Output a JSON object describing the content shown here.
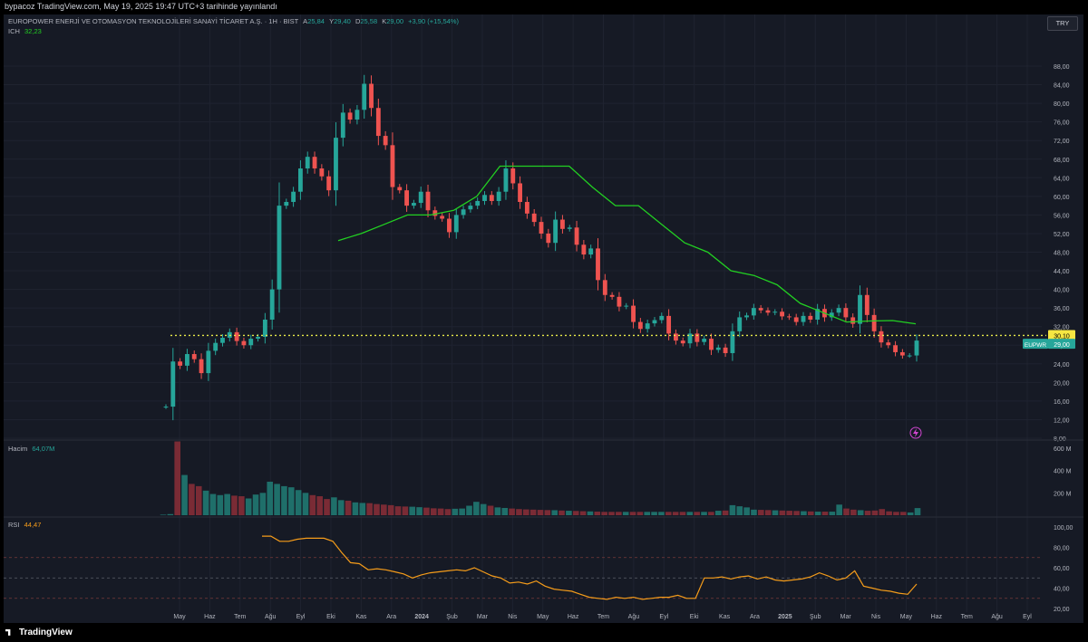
{
  "header": {
    "published_line": "bypacoz TradingView.com, May 19, 2025 19:47 UTC+3 tarihinde yayınlandı"
  },
  "legend": {
    "symbol_line": "EUROPOWER ENERJİ VE OTOMASYON TEKNOLOJİLERİ SANAYİ TİCARET A.Ş. · 1H · BIST",
    "open_label": "A",
    "open": "25,84",
    "high_label": "Y",
    "high": "29,40",
    "low_label": "D",
    "low": "25,58",
    "close_label": "K",
    "close": "29,00",
    "change": "+3,90 (+15,54%)",
    "ich_label": "ICH",
    "ich_value": "32,23",
    "volume_label": "Hacim",
    "volume_value": "64,07M",
    "rsi_label": "RSI",
    "rsi_value": "44,47"
  },
  "currency": "TRY",
  "brand": "TradingView",
  "colors": {
    "up": "#26a69a",
    "down": "#ef5350",
    "ich": "#22d022",
    "rsi": "#f59c1a",
    "ref_line": "#e8e84a",
    "background": "#161a25",
    "grid": "#1f2330"
  },
  "price_labels": {
    "ref_badge": "30,10",
    "symbol_badge": "EUPWR",
    "last_badge": "29,00"
  },
  "chart_data": [
    {
      "type": "candlestick",
      "title": "EUPWR",
      "ylim": [
        8,
        88
      ],
      "y_ticks": [
        "8,00",
        "12,00",
        "16,00",
        "20,00",
        "24,00",
        "28,00",
        "32,00",
        "36,00",
        "40,00",
        "44,00",
        "48,00",
        "52,00",
        "56,00",
        "60,00",
        "64,00",
        "68,00",
        "72,00",
        "76,00",
        "80,00",
        "84,00",
        "88,00"
      ],
      "x_ticks": [
        "May",
        "Haz",
        "Tem",
        "Ağu",
        "Eyl",
        "Eki",
        "Kas",
        "Ara",
        "2024",
        "Şub",
        "Mar",
        "Nis",
        "May",
        "Haz",
        "Tem",
        "Ağu",
        "Eyl",
        "Eki",
        "Kas",
        "Ara",
        "2025",
        "Şub",
        "Mar",
        "Nis",
        "May",
        "Haz",
        "Tem",
        "Ağu",
        "Eyl"
      ],
      "reference_line": 30.1,
      "last_price": 29.0,
      "closes": [
        14.8,
        24.5,
        23.6,
        26.1,
        25.0,
        22.0,
        26.8,
        28.5,
        29.6,
        30.8,
        28.9,
        28.0,
        29.4,
        29.8,
        33.5,
        40.0,
        58.0,
        58.8,
        61.0,
        66.0,
        68.5,
        66.0,
        64.3,
        61.3,
        72.6,
        78.0,
        76.5,
        78.6,
        84.2,
        79.0,
        73.0,
        71.0,
        62.0,
        61.3,
        58.0,
        58.6,
        61.0,
        57.0,
        55.8,
        55.2,
        52.3,
        56.0,
        57.2,
        58.0,
        59.0,
        60.3,
        59.0,
        61.0,
        66.0,
        62.8,
        58.8,
        56.3,
        54.5,
        52.0,
        50.0,
        55.0,
        53.0,
        53.3,
        49.6,
        47.5,
        48.8,
        42.0,
        38.8,
        38.4,
        36.3,
        36.5,
        33.0,
        31.5,
        32.7,
        33.4,
        34.3,
        30.5,
        29.0,
        28.4,
        30.5,
        28.7,
        29.4,
        27.0,
        27.5,
        26.3,
        31.0,
        34.0,
        34.4,
        36.0,
        35.5,
        35.0,
        35.2,
        34.2,
        34.0,
        33.0,
        34.3,
        33.5,
        35.8,
        34.0,
        35.0,
        36.0,
        34.0,
        32.6,
        38.8,
        34.5,
        31.0,
        28.6,
        28.0,
        26.5,
        25.8,
        25.8,
        29.0
      ],
      "ich": [
        [
          9,
          50.5
        ],
        [
          10,
          52
        ],
        [
          11,
          54
        ],
        [
          12,
          56
        ],
        [
          13,
          56
        ],
        [
          14,
          57
        ],
        [
          15,
          60
        ],
        [
          16,
          66.5
        ],
        [
          17,
          66.5
        ],
        [
          18,
          66.5
        ],
        [
          19,
          66.5
        ],
        [
          20,
          62
        ],
        [
          21,
          58
        ],
        [
          22,
          58
        ],
        [
          23,
          54
        ],
        [
          24,
          50
        ],
        [
          25,
          48
        ],
        [
          26,
          44
        ],
        [
          27,
          43
        ],
        [
          28,
          41
        ],
        [
          29,
          37
        ],
        [
          30,
          35
        ],
        [
          31,
          33
        ],
        [
          32,
          33.2
        ],
        [
          33,
          33.3
        ],
        [
          34,
          32.6
        ]
      ],
      "volume": {
        "label": "Hacim",
        "unit": "M",
        "ylim": [
          0,
          640
        ],
        "y_ticks": [
          "200 M",
          "400 M",
          "600 M"
        ],
        "values": [
          5,
          10,
          660,
          360,
          280,
          260,
          220,
          190,
          180,
          190,
          175,
          170,
          150,
          185,
          200,
          300,
          280,
          260,
          250,
          225,
          200,
          180,
          170,
          145,
          160,
          135,
          130,
          115,
          110,
          108,
          100,
          95,
          90,
          80,
          78,
          76,
          72,
          68,
          62,
          60,
          55,
          58,
          60,
          85,
          120,
          100,
          85,
          70,
          65,
          60,
          55,
          52,
          50,
          48,
          46,
          45,
          42,
          40,
          38,
          36,
          34,
          32,
          30,
          30,
          30,
          30,
          30,
          30,
          30,
          30,
          30,
          30,
          30,
          30,
          30,
          30,
          30,
          30,
          40,
          42,
          90,
          80,
          70,
          50,
          48,
          46,
          44,
          42,
          40,
          38,
          36,
          34,
          32,
          32,
          32,
          95,
          60,
          50,
          45,
          40,
          42,
          55,
          35,
          30,
          30,
          25,
          64
        ]
      },
      "rsi": {
        "label": "RSI",
        "ylim": [
          20,
          100
        ],
        "y_ticks": [
          "20,00",
          "40,00",
          "60,00",
          "80,00",
          "100,00"
        ],
        "bands": [
          30,
          50,
          70
        ],
        "values": [
          91,
          91,
          86,
          86,
          88,
          89,
          89,
          89,
          86,
          75,
          65,
          64,
          58,
          59,
          58,
          56,
          54,
          50,
          53,
          55,
          56,
          57,
          58,
          57,
          60,
          56,
          52,
          50,
          45,
          46,
          44,
          47,
          42,
          39,
          38,
          37,
          34,
          31,
          30,
          29,
          31,
          30,
          31,
          29,
          30,
          31,
          31,
          33,
          30,
          30,
          50,
          50,
          51,
          49,
          51,
          52,
          49,
          51,
          48,
          47,
          48,
          49,
          51,
          55,
          52,
          48,
          50,
          57,
          42,
          40,
          38,
          37,
          35,
          34,
          44
        ]
      }
    }
  ]
}
